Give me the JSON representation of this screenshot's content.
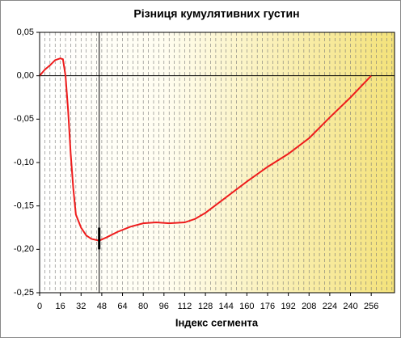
{
  "chart_data": {
    "type": "line",
    "title": "Різниця кумулятивних густин",
    "x_label": "Індекс сегмента",
    "series": [
      {
        "name": null,
        "color": "#ee1c1c",
        "x": [
          0,
          4,
          8,
          12,
          16,
          18,
          20,
          22,
          24,
          26,
          28,
          32,
          36,
          40,
          46,
          52,
          60,
          70,
          80,
          90,
          100,
          112,
          120,
          128,
          144,
          160,
          176,
          192,
          208,
          224,
          240,
          256
        ],
        "values": [
          0,
          0.007,
          0.012,
          0.018,
          0.02,
          0.019,
          0.0,
          -0.04,
          -0.09,
          -0.13,
          -0.16,
          -0.175,
          -0.184,
          -0.188,
          -0.19,
          -0.186,
          -0.18,
          -0.174,
          -0.17,
          -0.169,
          -0.17,
          -0.169,
          -0.165,
          -0.158,
          -0.14,
          -0.122,
          -0.105,
          -0.09,
          -0.072,
          -0.048,
          -0.025,
          0
        ]
      }
    ],
    "xlim": [
      0,
      274
    ],
    "ylim": [
      -0.25,
      0.05
    ],
    "xticks": [
      0,
      16,
      32,
      48,
      64,
      80,
      96,
      112,
      128,
      144,
      160,
      176,
      192,
      208,
      224,
      240,
      256
    ],
    "yticks": [
      {
        "value": 0.05,
        "label": "0,05"
      },
      {
        "value": 0,
        "label": "0,00"
      },
      {
        "value": -0.05,
        "label": "-0,05"
      },
      {
        "value": -0.1,
        "label": "-0,10"
      },
      {
        "value": -0.15,
        "label": "-0,15"
      },
      {
        "value": -0.2,
        "label": "-0,20"
      },
      {
        "value": -0.25,
        "label": "-0,25"
      }
    ],
    "minor_grid_step": 4,
    "cursor": {
      "x": 46,
      "y_from": -0.2,
      "y_to": -0.175
    }
  }
}
